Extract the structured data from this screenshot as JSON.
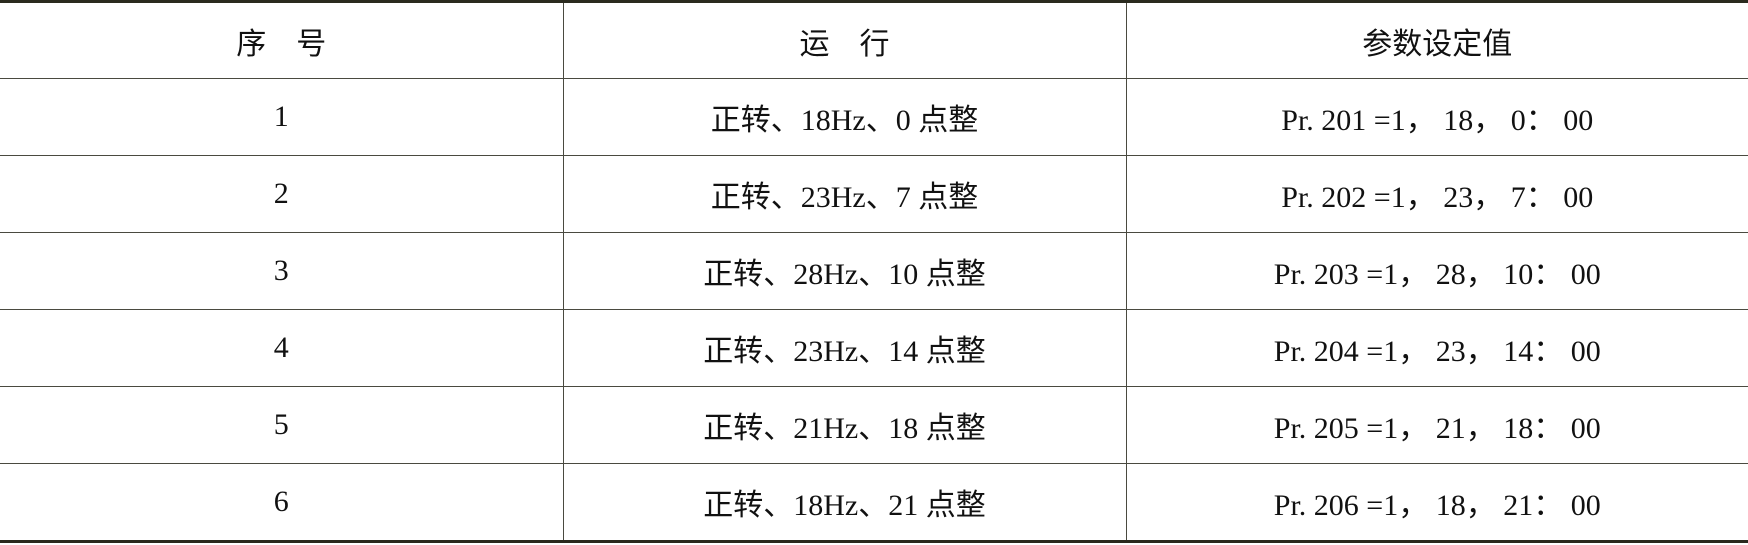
{
  "table": {
    "headers": [
      "序　号",
      "运　行",
      "参数设定值"
    ],
    "rows": [
      [
        "1",
        "正转、18Hz、0 点整",
        "Pr. 201 =1， 18， 0： 00"
      ],
      [
        "2",
        "正转、23Hz、7 点整",
        "Pr. 202 =1， 23， 7： 00"
      ],
      [
        "3",
        "正转、28Hz、10 点整",
        "Pr. 203 =1， 28， 10： 00"
      ],
      [
        "4",
        "正转、23Hz、14 点整",
        "Pr. 204 =1， 23， 14： 00"
      ],
      [
        "5",
        "正转、21Hz、18 点整",
        "Pr. 205 =1， 21， 18： 00"
      ],
      [
        "6",
        "正转、18Hz、21 点整",
        "Pr. 206 =1， 18， 21： 00"
      ]
    ]
  }
}
